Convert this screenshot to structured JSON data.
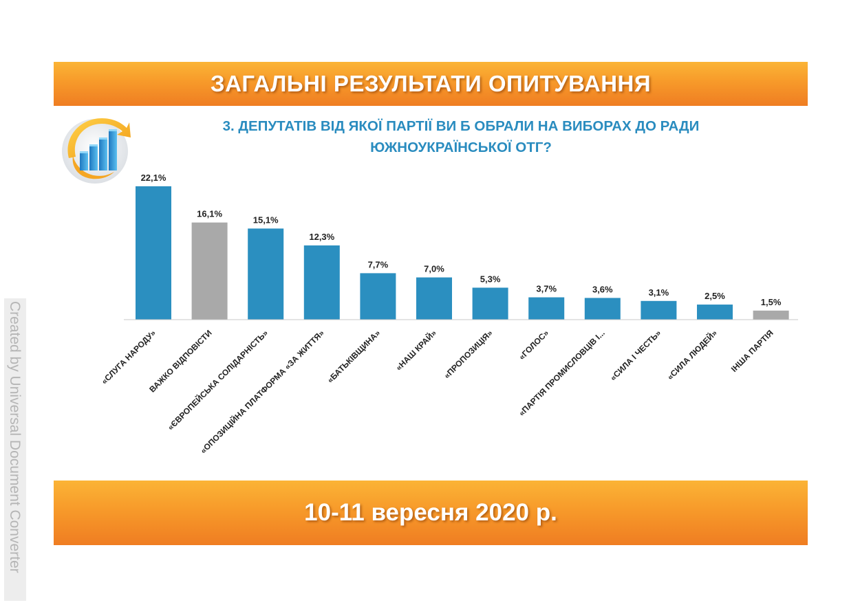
{
  "header": {
    "title": "ЗАГАЛЬНІ РЕЗУЛЬТАТИ ОПИТУВАННЯ"
  },
  "question": {
    "line1": "3. ДЕПУТАТІВ ВІД ЯКОЇ ПАРТІЇ ВИ Б ОБРАЛИ НА ВИБОРАХ ДО РАДИ",
    "line2": "ЮЖНОУКРАЇНСЬКОЇ ОТГ?"
  },
  "footer": {
    "date": "10-11 вересня 2020 р."
  },
  "watermark": "Created by Universal Document Converter",
  "logo_icon": "bar-chart-arrow-logo-icon",
  "colors": {
    "bar_blue": "#2b8fc0",
    "bar_gray": "#a9a9a9",
    "accent_orange": "#f4902a",
    "question_blue": "#2a8cbf"
  },
  "chart_data": {
    "type": "bar",
    "title": "",
    "xlabel": "",
    "ylabel": "",
    "ylim": [
      0,
      22.1
    ],
    "grid": false,
    "legend": "none",
    "categories": [
      "«СЛУГА НАРОДУ»",
      "ВАЖКО ВІДПОВІСТИ",
      "«ЄВРОПЕЙСЬКА СОЛІДАРНІСТЬ»",
      "«ОПОЗИЦІЙНА ПЛАТФОРМА «ЗА ЖИТТЯ»",
      "«БАТЬКІВЩИНА»",
      "«НАШ КРАЙ»",
      "«ПРОПОЗИЦІЯ»",
      "«ГОЛОС»",
      "«ПАРТІЯ ПРОМИСЛОВЦІВ І...",
      "«СИЛА І ЧЕСТЬ»",
      "«СИЛА ЛЮДЕЙ»",
      "ІНША ПАРТІЯ"
    ],
    "values": [
      22.1,
      16.1,
      15.1,
      12.3,
      7.7,
      7.0,
      5.3,
      3.7,
      3.6,
      3.1,
      2.5,
      1.5
    ],
    "labels": [
      "22,1%",
      "16,1%",
      "15,1%",
      "12,3%",
      "7,7%",
      "7,0%",
      "5,3%",
      "3,7%",
      "3,6%",
      "3,1%",
      "2,5%",
      "1,5%"
    ],
    "bar_colors": [
      "#2b8fc0",
      "#a9a9a9",
      "#2b8fc0",
      "#2b8fc0",
      "#2b8fc0",
      "#2b8fc0",
      "#2b8fc0",
      "#2b8fc0",
      "#2b8fc0",
      "#2b8fc0",
      "#2b8fc0",
      "#a9a9a9"
    ]
  }
}
